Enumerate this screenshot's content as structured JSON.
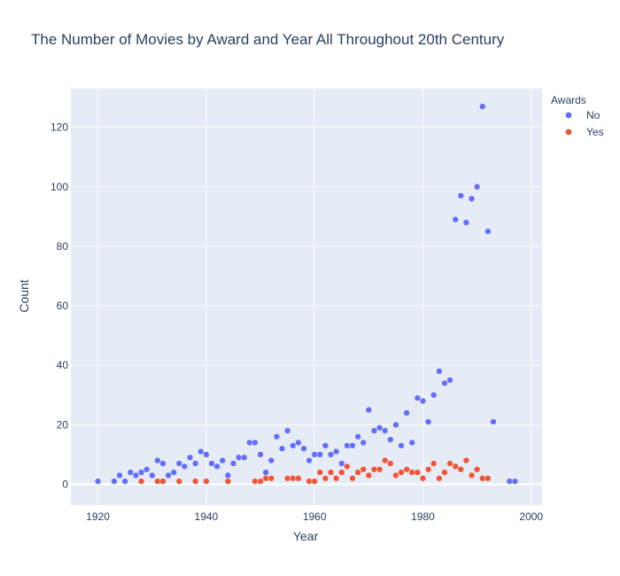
{
  "chart_data": {
    "type": "scatter",
    "title": "The Number of Movies by Award and Year All Throughout 20th Century",
    "xlabel": "Year",
    "ylabel": "Count",
    "xlim": [
      1915,
      2002
    ],
    "ylim": [
      -7,
      133
    ],
    "xticks": [
      1920,
      1940,
      1960,
      1980,
      2000
    ],
    "yticks": [
      0,
      20,
      40,
      60,
      80,
      100,
      120
    ],
    "grid": true,
    "legend": {
      "title": "Awards",
      "placement": "top-right"
    },
    "series": [
      {
        "name": "No",
        "color": "#636efa",
        "points": [
          [
            1920,
            1
          ],
          [
            1923,
            1
          ],
          [
            1924,
            3
          ],
          [
            1925,
            1
          ],
          [
            1926,
            4
          ],
          [
            1927,
            3
          ],
          [
            1928,
            4
          ],
          [
            1929,
            5
          ],
          [
            1930,
            3
          ],
          [
            1931,
            8
          ],
          [
            1932,
            7
          ],
          [
            1933,
            3
          ],
          [
            1934,
            4
          ],
          [
            1935,
            7
          ],
          [
            1936,
            6
          ],
          [
            1937,
            9
          ],
          [
            1938,
            7
          ],
          [
            1939,
            11
          ],
          [
            1940,
            10
          ],
          [
            1941,
            7
          ],
          [
            1942,
            6
          ],
          [
            1943,
            8
          ],
          [
            1944,
            3
          ],
          [
            1945,
            7
          ],
          [
            1946,
            9
          ],
          [
            1947,
            9
          ],
          [
            1948,
            14
          ],
          [
            1949,
            14
          ],
          [
            1950,
            10
          ],
          [
            1951,
            4
          ],
          [
            1952,
            8
          ],
          [
            1953,
            16
          ],
          [
            1954,
            12
          ],
          [
            1955,
            18
          ],
          [
            1956,
            13
          ],
          [
            1957,
            14
          ],
          [
            1958,
            12
          ],
          [
            1959,
            8
          ],
          [
            1960,
            10
          ],
          [
            1961,
            10
          ],
          [
            1962,
            13
          ],
          [
            1963,
            10
          ],
          [
            1964,
            11
          ],
          [
            1965,
            7
          ],
          [
            1966,
            13
          ],
          [
            1967,
            13
          ],
          [
            1968,
            16
          ],
          [
            1969,
            14
          ],
          [
            1970,
            25
          ],
          [
            1971,
            18
          ],
          [
            1972,
            19
          ],
          [
            1973,
            18
          ],
          [
            1974,
            15
          ],
          [
            1975,
            20
          ],
          [
            1976,
            13
          ],
          [
            1977,
            24
          ],
          [
            1978,
            14
          ],
          [
            1979,
            29
          ],
          [
            1980,
            28
          ],
          [
            1981,
            21
          ],
          [
            1982,
            30
          ],
          [
            1983,
            38
          ],
          [
            1984,
            34
          ],
          [
            1985,
            35
          ],
          [
            1986,
            89
          ],
          [
            1987,
            97
          ],
          [
            1988,
            88
          ],
          [
            1989,
            96
          ],
          [
            1990,
            100
          ],
          [
            1991,
            127
          ],
          [
            1992,
            85
          ],
          [
            1993,
            21
          ],
          [
            1996,
            1
          ],
          [
            1997,
            1
          ]
        ]
      },
      {
        "name": "Yes",
        "color": "#ef553b",
        "points": [
          [
            1928,
            1
          ],
          [
            1931,
            1
          ],
          [
            1932,
            1
          ],
          [
            1935,
            1
          ],
          [
            1938,
            1
          ],
          [
            1940,
            1
          ],
          [
            1944,
            1
          ],
          [
            1949,
            1
          ],
          [
            1950,
            1
          ],
          [
            1951,
            2
          ],
          [
            1952,
            2
          ],
          [
            1955,
            2
          ],
          [
            1956,
            2
          ],
          [
            1957,
            2
          ],
          [
            1959,
            1
          ],
          [
            1960,
            1
          ],
          [
            1961,
            4
          ],
          [
            1962,
            2
          ],
          [
            1963,
            4
          ],
          [
            1964,
            2
          ],
          [
            1965,
            4
          ],
          [
            1966,
            6
          ],
          [
            1967,
            2
          ],
          [
            1968,
            4
          ],
          [
            1969,
            5
          ],
          [
            1970,
            3
          ],
          [
            1971,
            5
          ],
          [
            1972,
            5
          ],
          [
            1973,
            8
          ],
          [
            1974,
            7
          ],
          [
            1975,
            3
          ],
          [
            1976,
            4
          ],
          [
            1977,
            5
          ],
          [
            1978,
            4
          ],
          [
            1979,
            4
          ],
          [
            1980,
            2
          ],
          [
            1981,
            5
          ],
          [
            1982,
            7
          ],
          [
            1983,
            2
          ],
          [
            1984,
            4
          ],
          [
            1985,
            7
          ],
          [
            1986,
            6
          ],
          [
            1987,
            5
          ],
          [
            1988,
            8
          ],
          [
            1989,
            3
          ],
          [
            1990,
            5
          ],
          [
            1991,
            2
          ],
          [
            1992,
            2
          ]
        ]
      }
    ]
  }
}
